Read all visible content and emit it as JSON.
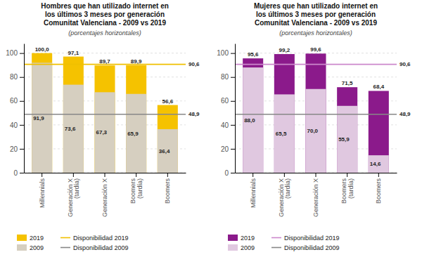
{
  "chart_data": [
    {
      "type": "bar",
      "title": "Hombres que han utilizado internet en\nlos últimos 3 meses por generación\nComunitat Valenciana - 2009 vs 2019",
      "subtitle": "(porcentajes horizontales)",
      "categories": [
        "Millennials",
        "Generación X\n(tardía)",
        "Generación X",
        "Boomers\n(tardía)",
        "Boomers"
      ],
      "series": [
        {
          "name": "2019",
          "color": "#f5c200",
          "values": [
            100.0,
            97.1,
            89.7,
            89.9,
            56.6
          ],
          "value_labels": [
            "100,0",
            "97,1",
            "89,7",
            "89,9",
            "56,6"
          ]
        },
        {
          "name": "2009",
          "color": "#d6cfc0",
          "values": [
            91.9,
            73.6,
            67.3,
            65.9,
            36.4
          ],
          "value_labels": [
            "91,9",
            "73,6",
            "67,3",
            "65,9",
            "36,4"
          ]
        }
      ],
      "reference_lines": [
        {
          "name": "Disponibilidad 2019",
          "value": 90.6,
          "label": "90,6",
          "color": "#f0c000"
        },
        {
          "name": "Disponibilidad 2009",
          "value": 48.9,
          "label": "48,9",
          "color": "#888888"
        }
      ],
      "ylim": [
        0,
        108
      ],
      "yticks": [
        0,
        20,
        40,
        60,
        80,
        100
      ],
      "grid": true,
      "legend": "bottom",
      "stacked": false,
      "data_labels": true
    },
    {
      "type": "bar",
      "title": "Mujeres que han utilizado internet en\nlos últimos 3 meses por generación\nComunitat Valenciana - 2009 vs 2019",
      "subtitle": "(porcentajes horizontales)",
      "categories": [
        "Millennials",
        "Generación X\n(tardía)",
        "Generación X",
        "Boomers\n(tardía)",
        "Boomers"
      ],
      "series": [
        {
          "name": "2019",
          "color": "#8b1a8b",
          "values": [
            95.6,
            99.2,
            99.6,
            71.5,
            68.4
          ],
          "value_labels": [
            "95,6",
            "99,2",
            "99,6",
            "71,5",
            "68,4"
          ]
        },
        {
          "name": "2009",
          "color": "#e0c8e0",
          "values": [
            88.0,
            65.5,
            70.0,
            55.9,
            14.6
          ],
          "value_labels": [
            "88,0",
            "65,5",
            "70,0",
            "55,9",
            "14,6"
          ]
        }
      ],
      "reference_lines": [
        {
          "name": "Disponibilidad 2019",
          "value": 90.6,
          "label": "90,6",
          "color": "#cc88cc"
        },
        {
          "name": "Disponibilidad 2009",
          "value": 48.9,
          "label": "48,9",
          "color": "#888888"
        }
      ],
      "ylim": [
        0,
        108
      ],
      "yticks": [
        0,
        20,
        40,
        60,
        80,
        100
      ],
      "grid": true,
      "legend": "bottom",
      "stacked": false,
      "data_labels": true
    }
  ]
}
